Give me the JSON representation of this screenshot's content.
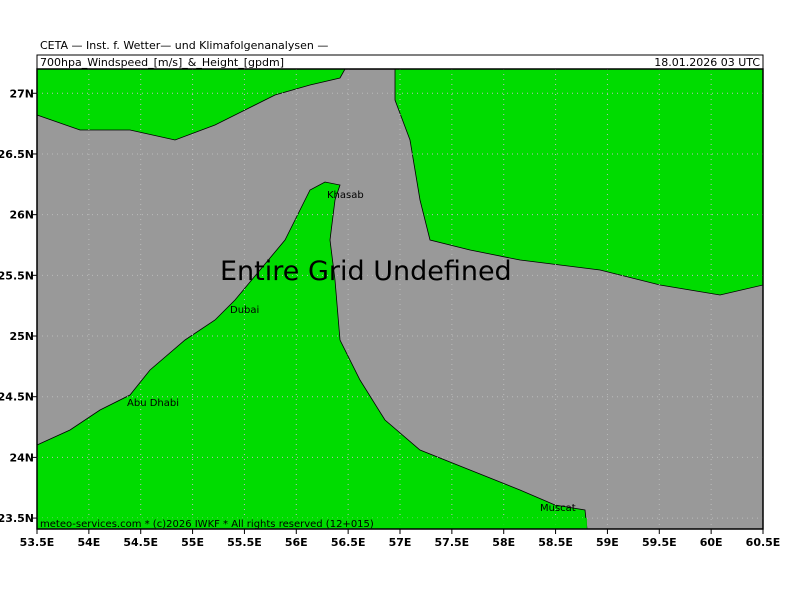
{
  "header": {
    "title": "CETA — Inst. f. Wetter— und Klimafolgenanalysen —",
    "subtitle": "700hpa_Windspeed_[m/s]_&_Height_[gpdm]",
    "datetime": "18.01.2026 03 UTC"
  },
  "map": {
    "message": "Entire Grid Undefined",
    "places": [
      "Khasab",
      "Dubai",
      "Abu Dhabi",
      "Muscat"
    ],
    "xlim": [
      53.5,
      60.5
    ],
    "ylim": [
      23.41,
      27.2
    ],
    "xticks": [
      {
        "value": 53.5,
        "label": "53.5E"
      },
      {
        "value": 54,
        "label": "54E"
      },
      {
        "value": 54.5,
        "label": "54.5E"
      },
      {
        "value": 55,
        "label": "55E"
      },
      {
        "value": 55.5,
        "label": "55.5E"
      },
      {
        "value": 56,
        "label": "56E"
      },
      {
        "value": 56.5,
        "label": "56.5E"
      },
      {
        "value": 57,
        "label": "57E"
      },
      {
        "value": 57.5,
        "label": "57.5E"
      },
      {
        "value": 58,
        "label": "58E"
      },
      {
        "value": 58.5,
        "label": "58.5E"
      },
      {
        "value": 59,
        "label": "59E"
      },
      {
        "value": 59.5,
        "label": "59.5E"
      },
      {
        "value": 60,
        "label": "60E"
      },
      {
        "value": 60.5,
        "label": "60.5E"
      }
    ],
    "yticks": [
      {
        "value": 23.5,
        "label": "23.5N"
      },
      {
        "value": 24,
        "label": "24N"
      },
      {
        "value": 24.5,
        "label": "24.5N"
      },
      {
        "value": 25,
        "label": "25N"
      },
      {
        "value": 25.5,
        "label": "25.5N"
      },
      {
        "value": 26,
        "label": "26N"
      },
      {
        "value": 26.5,
        "label": "26.5N"
      },
      {
        "value": 27,
        "label": "27N"
      }
    ],
    "grid": true
  },
  "footer": "meteo-services.com * (c)2026 IWKF * All rights reserved (12+015)"
}
